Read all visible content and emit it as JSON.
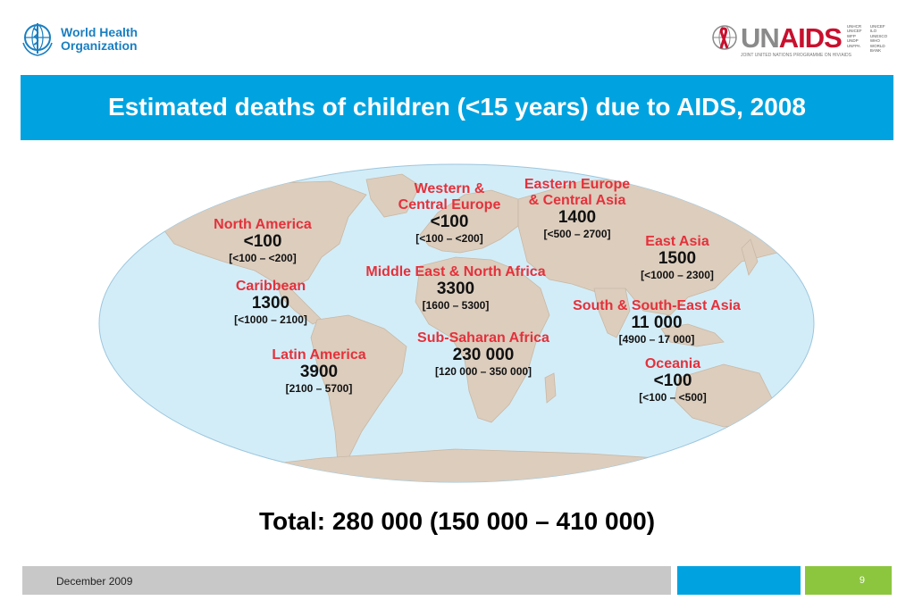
{
  "header": {
    "who_name_line1": "World Health",
    "who_name_line2": "Organization",
    "unaids_un": "UN",
    "unaids_aids": "AIDS",
    "unaids_tagline": "JOINT UNITED NATIONS PROGRAMME ON HIV/AIDS",
    "unaids_sponsors": [
      "UNHCR",
      "UNICEF",
      "UNICEF",
      "ILO",
      "WFP",
      "UNESCO",
      "UNDP",
      "WHO",
      "UNFPA",
      "WORLD BANK"
    ]
  },
  "title": "Estimated deaths of children (<15 years) due to AIDS, 2008",
  "regions": [
    {
      "name": "North America",
      "value": "<100",
      "range": "[<100 – <200]"
    },
    {
      "name": "Caribbean",
      "value": "1300",
      "range": "[<1000 – 2100]"
    },
    {
      "name": "Latin America",
      "value": "3900",
      "range": "[2100 – 5700]"
    },
    {
      "name": "Western & Central Europe",
      "value": "<100",
      "range": "[<100 – <200]"
    },
    {
      "name": "Eastern Europe & Central Asia",
      "value": "1400",
      "range": "[<500 – 2700]"
    },
    {
      "name": "Middle East & North Africa",
      "value": "3300",
      "range": "[1600 – 5300]"
    },
    {
      "name": "Sub-Saharan Africa",
      "value": "230 000",
      "range": "[120 000 – 350 000]"
    },
    {
      "name": "East Asia",
      "value": "1500",
      "range": "[<1000 – 2300]"
    },
    {
      "name": "South & South-East Asia",
      "value": "11 000",
      "range": "[4900 – 17 000]"
    },
    {
      "name": "Oceania",
      "value": "<100",
      "range": "[<100 – <500]"
    }
  ],
  "region_name_lines": {
    "western_central_europe": [
      "Western &",
      "Central Europe"
    ],
    "eastern_europe_central_asia": [
      "Eastern Europe",
      "& Central Asia"
    ]
  },
  "total": "Total: 280 000 (150 000 – 410 000)",
  "footer": {
    "date": "December 2009",
    "page": "9"
  },
  "colors": {
    "title_bar": "#00a3e0",
    "region_name": "#e4313b",
    "ocean": "#d3edf8",
    "land": "#dccdbd",
    "footer_blue": "#00a3e0",
    "footer_green": "#8cc63f",
    "footer_grey": "#c8c8c8"
  },
  "icons": [
    "who-emblem-icon",
    "unaids-ribbon-icon"
  ]
}
